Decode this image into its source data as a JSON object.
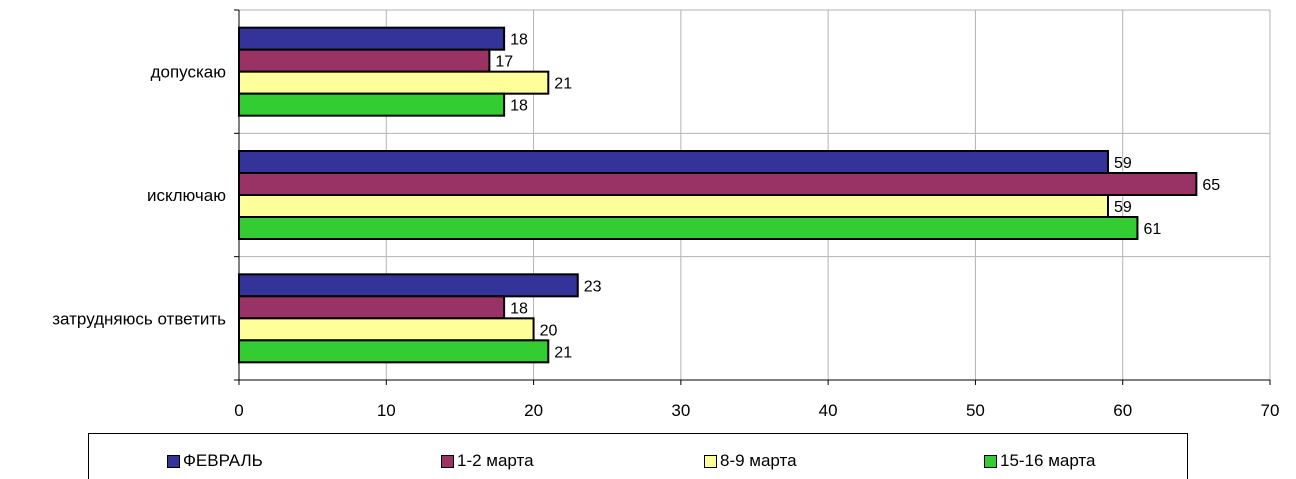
{
  "chart_data": {
    "type": "bar",
    "orientation": "horizontal",
    "categories": [
      "допускаю",
      "исключаю",
      "затрудняюсь ответить"
    ],
    "series": [
      {
        "name": "ФЕВРАЛЬ",
        "color": "#333399",
        "values": [
          18,
          59,
          23
        ]
      },
      {
        "name": "1-2 марта",
        "color": "#993366",
        "values": [
          17,
          65,
          18
        ]
      },
      {
        "name": "8-9 марта",
        "color": "#ffff99",
        "values": [
          21,
          59,
          20
        ]
      },
      {
        "name": "15-16 марта",
        "color": "#33cc33",
        "values": [
          18,
          61,
          21
        ]
      }
    ],
    "xlim": [
      0,
      70
    ],
    "xticks": [
      0,
      10,
      20,
      30,
      40,
      50,
      60,
      70
    ],
    "grid": true,
    "legend": "bottom"
  }
}
